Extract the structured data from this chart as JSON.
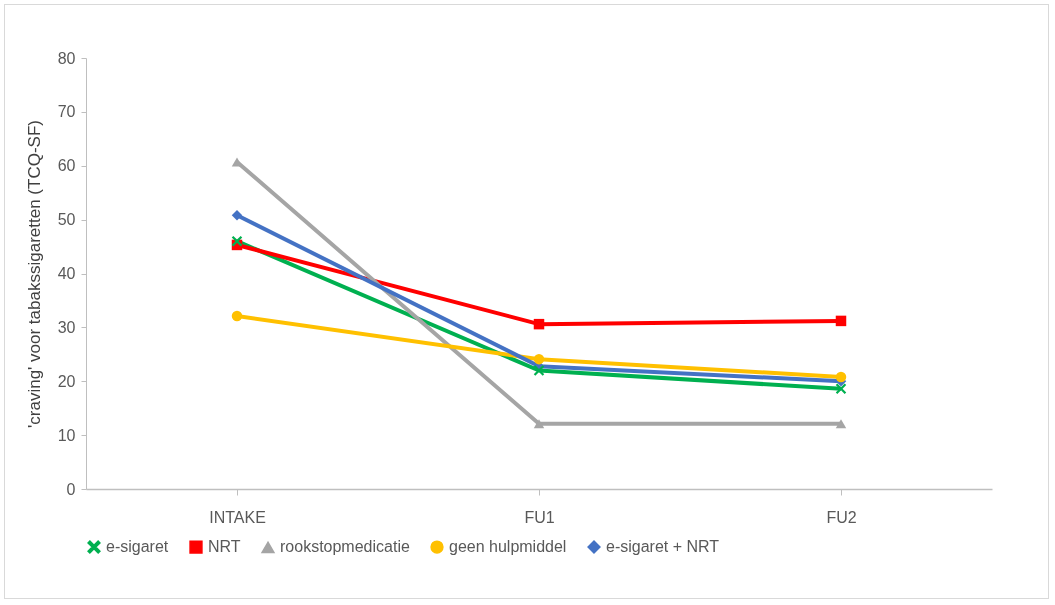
{
  "chart_data": {
    "type": "line",
    "ylabel": "'craving' voor tabakssigaretten (TCQ-SF)",
    "categories": [
      "INTAKE",
      "FU1",
      "FU2"
    ],
    "ylim": [
      0,
      80
    ],
    "yticks": [
      0,
      10,
      20,
      30,
      40,
      50,
      60,
      70,
      80
    ],
    "grid": false,
    "legend": "bottom",
    "series": [
      {
        "name": "e-sigaret",
        "color": "#00b050",
        "marker": "cross",
        "values": [
          46.0,
          22.0,
          18.6
        ]
      },
      {
        "name": "NRT",
        "color": "#ff0000",
        "marker": "square",
        "values": [
          45.3,
          30.6,
          31.2
        ]
      },
      {
        "name": "rookstopmedicatie",
        "color": "#a5a5a5",
        "marker": "triangle",
        "values": [
          60.7,
          12.1,
          12.1
        ]
      },
      {
        "name": "geen hulpmiddel",
        "color": "#ffc000",
        "marker": "circle",
        "values": [
          32.1,
          24.1,
          20.8
        ]
      },
      {
        "name": "e-sigaret + NRT",
        "color": "#4472c4",
        "marker": "diamond",
        "values": [
          50.8,
          22.8,
          20.0
        ]
      }
    ]
  }
}
